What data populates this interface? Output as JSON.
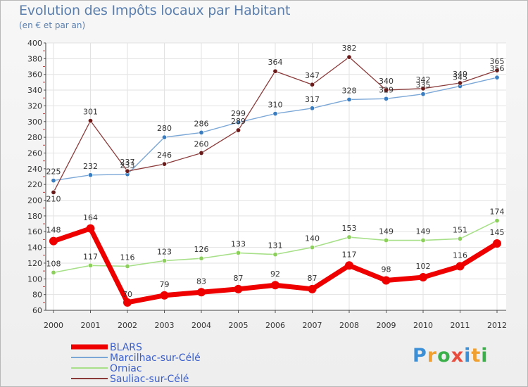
{
  "chart_data": {
    "type": "line",
    "title": "Evolution des Impôts locaux par Habitant",
    "subtitle": "(en € et par an)",
    "xlabel": "",
    "ylabel": "",
    "categories": [
      "2000",
      "2001",
      "2002",
      "2003",
      "2004",
      "2005",
      "2006",
      "2007",
      "2008",
      "2009",
      "2010",
      "2011",
      "2012"
    ],
    "ylim": [
      60,
      400
    ],
    "yticks": [
      60,
      80,
      100,
      120,
      140,
      160,
      180,
      200,
      220,
      240,
      260,
      280,
      300,
      320,
      340,
      360,
      380,
      400
    ],
    "grid": true,
    "legend_position": "bottom-left",
    "series": [
      {
        "name": "BLARS",
        "color": "#ee0000",
        "values": [
          148,
          164,
          70,
          79,
          83,
          87,
          92,
          87,
          117,
          98,
          102,
          116,
          145
        ]
      },
      {
        "name": "Marcilhac-sur-Célé",
        "color": "#7ba7d7",
        "values": [
          225,
          232,
          233,
          280,
          286,
          299,
          310,
          317,
          328,
          329,
          335,
          345,
          356
        ]
      },
      {
        "name": "Orniac",
        "color": "#99dd77",
        "values": [
          108,
          117,
          116,
          123,
          126,
          133,
          131,
          140,
          153,
          149,
          149,
          151,
          174
        ]
      },
      {
        "name": "Sauliac-sur-Célé",
        "color": "#8b3a3a",
        "values": [
          210,
          301,
          237,
          246,
          260,
          289,
          364,
          347,
          382,
          340,
          342,
          349,
          365
        ]
      }
    ]
  },
  "logo": {
    "text": "Proxiti",
    "colors": [
      "#3b8fd6",
      "#f0a030",
      "#3bb04a",
      "#e84c3d",
      "#3b8fd6",
      "#f0a030",
      "#3bb04a"
    ]
  }
}
